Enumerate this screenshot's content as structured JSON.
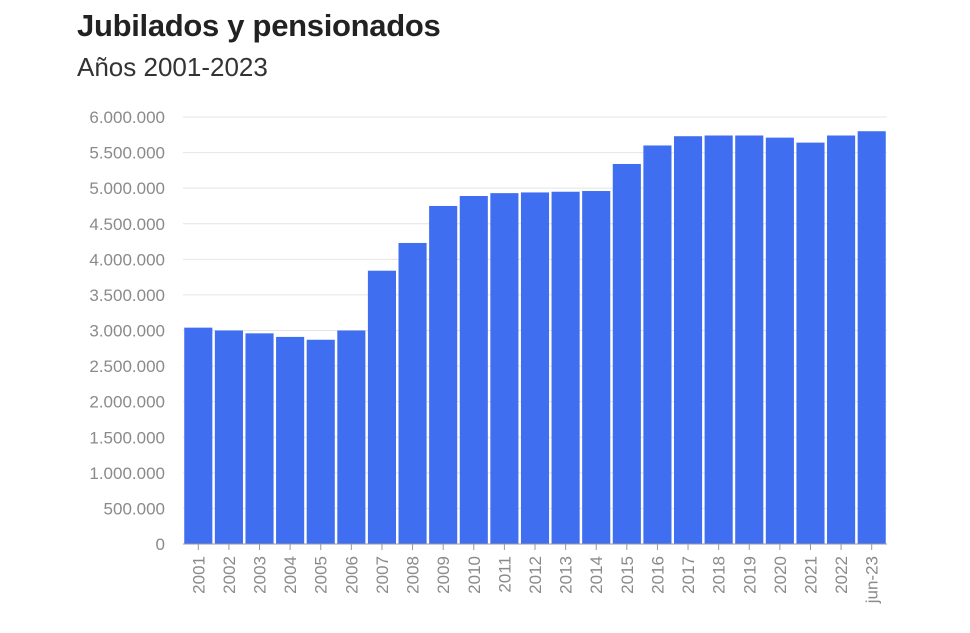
{
  "chart_data": {
    "type": "bar",
    "title": "Jubilados y pensionados",
    "subtitle": "Años 2001-2023",
    "categories": [
      "2001",
      "2002",
      "2003",
      "2004",
      "2005",
      "2006",
      "2007",
      "2008",
      "2009",
      "2010",
      "2011",
      "2012",
      "2013",
      "2014",
      "2015",
      "2016",
      "2017",
      "2018",
      "2019",
      "2020",
      "2021",
      "2022",
      "jun-23"
    ],
    "values": [
      3040000,
      3000000,
      2960000,
      2910000,
      2870000,
      3000000,
      3840000,
      4230000,
      4750000,
      4890000,
      4930000,
      4940000,
      4950000,
      4960000,
      5340000,
      5600000,
      5730000,
      5740000,
      5740000,
      5710000,
      5640000,
      5740000,
      5800000
    ],
    "ylim": [
      0,
      6000000
    ],
    "yticks": [
      0,
      500000,
      1000000,
      1500000,
      2000000,
      2500000,
      3000000,
      3500000,
      4000000,
      4500000,
      5000000,
      5500000,
      6000000
    ],
    "ytick_labels": [
      "0",
      "500.000",
      "1.000.000",
      "1.500.000",
      "2.000.000",
      "2.500.000",
      "3.000.000",
      "3.500.000",
      "4.000.000",
      "4.500.000",
      "5.000.000",
      "5.500.000",
      "6.000.000"
    ],
    "xlabel": "",
    "ylabel": "",
    "grid": true,
    "bar_color": "#3f6ef0",
    "grid_color": "#e4e4e4"
  }
}
